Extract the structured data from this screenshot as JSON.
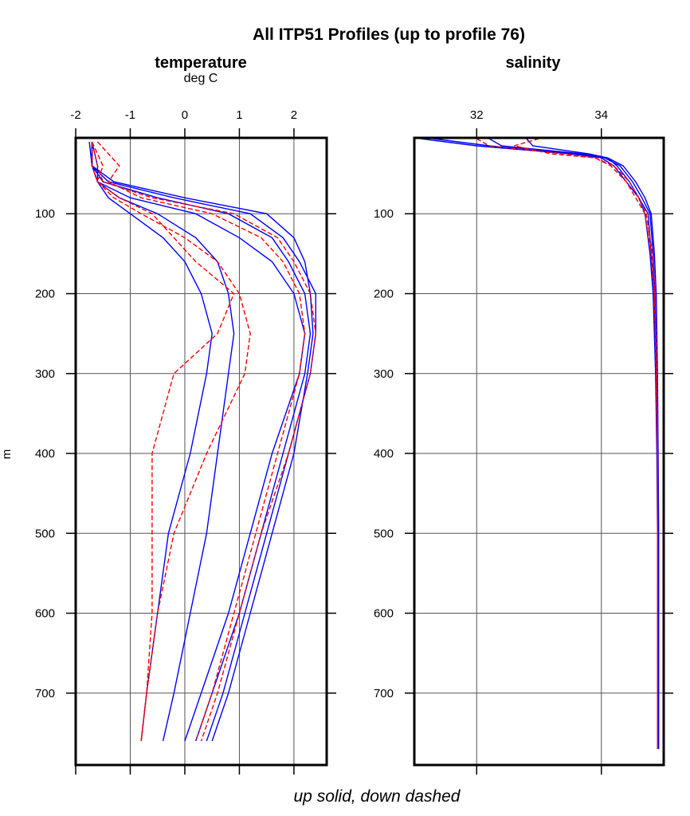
{
  "chart_data": [
    {
      "type": "line",
      "title": "All ITP51 Profiles (up to profile 76)",
      "panel_title": "temperature",
      "xlabel": "deg C",
      "ylabel": "m",
      "footnote": "up solid, down dashed",
      "xlim": [
        -2,
        2.6
      ],
      "ylim": [
        5,
        790
      ],
      "y_inverted": true,
      "x_ticks": [
        "-2",
        "-1",
        "0",
        "1",
        "2"
      ],
      "x_tick_values": [
        -2,
        -1,
        0,
        1,
        2
      ],
      "y_ticks": [
        "100",
        "200",
        "300",
        "400",
        "500",
        "600",
        "700"
      ],
      "y_tick_values": [
        100,
        200,
        300,
        400,
        500,
        600,
        700
      ],
      "grid": true,
      "depth": [
        10,
        40,
        60,
        80,
        100,
        130,
        160,
        200,
        250,
        300,
        400,
        500,
        600,
        700,
        760
      ],
      "series": [
        {
          "name": "up",
          "style": "solid",
          "color": "#0000ff",
          "values": [
            -1.7,
            -1.7,
            -1.5,
            -0.5,
            0.8,
            1.6,
            1.9,
            2.2,
            2.3,
            2.2,
            1.8,
            1.4,
            1.0,
            0.5,
            0.2
          ]
        },
        {
          "name": "up",
          "style": "solid",
          "color": "#0000ff",
          "values": [
            -1.75,
            -1.7,
            -1.4,
            -0.2,
            1.2,
            1.8,
            2.1,
            2.4,
            2.4,
            2.3,
            1.9,
            1.5,
            1.1,
            0.7,
            0.4
          ]
        },
        {
          "name": "up",
          "style": "solid",
          "color": "#0000ff",
          "values": [
            -1.7,
            -1.6,
            -1.6,
            -1.0,
            0.2,
            1.0,
            1.6,
            2.0,
            2.2,
            2.1,
            1.6,
            1.2,
            0.8,
            0.3,
            0.0
          ]
        },
        {
          "name": "up",
          "style": "solid",
          "color": "#0000ff",
          "values": [
            -1.7,
            -1.7,
            -1.6,
            -1.2,
            -0.5,
            0.2,
            0.6,
            0.8,
            0.9,
            0.8,
            0.6,
            0.4,
            0.1,
            -0.2,
            -0.4
          ]
        },
        {
          "name": "up",
          "style": "solid",
          "color": "#0000ff",
          "values": [
            -1.7,
            -1.7,
            -1.6,
            -1.4,
            -1.0,
            -0.4,
            0.0,
            0.3,
            0.5,
            0.4,
            0.1,
            -0.3,
            -0.5,
            -0.7,
            -0.8
          ]
        },
        {
          "name": "up",
          "style": "solid",
          "color": "#0000ff",
          "values": [
            -1.7,
            -1.7,
            -1.3,
            0.0,
            1.5,
            2.0,
            2.2,
            2.3,
            2.35,
            2.25,
            2.0,
            1.6,
            1.2,
            0.8,
            0.5
          ]
        },
        {
          "name": "down",
          "style": "dashed",
          "color": "#ff0000",
          "values": [
            -1.6,
            -1.2,
            -1.4,
            -0.8,
            0.5,
            1.4,
            1.8,
            2.1,
            2.2,
            2.1,
            1.7,
            1.3,
            0.9,
            0.5,
            0.2
          ]
        },
        {
          "name": "down",
          "style": "dashed",
          "color": "#ff0000",
          "values": [
            -1.7,
            -1.5,
            -1.6,
            -1.3,
            -0.8,
            0.0,
            0.6,
            1.0,
            1.2,
            1.1,
            0.4,
            -0.2,
            -0.5,
            -0.7,
            -0.8
          ]
        },
        {
          "name": "down",
          "style": "dashed",
          "color": "#ff0000",
          "values": [
            -1.7,
            -1.6,
            -1.5,
            -0.6,
            0.9,
            1.7,
            2.0,
            2.3,
            2.4,
            2.3,
            1.9,
            1.4,
            1.0,
            0.6,
            0.3
          ]
        },
        {
          "name": "down",
          "style": "dashed",
          "color": "#ff0000",
          "values": [
            -1.7,
            -1.7,
            -1.6,
            -1.2,
            -0.6,
            -0.2,
            0.2,
            0.9,
            0.6,
            -0.2,
            -0.6,
            -0.6,
            -0.6,
            -0.7,
            -0.8
          ]
        }
      ]
    },
    {
      "type": "line",
      "panel_title": "salinity",
      "xlim": [
        31,
        35
      ],
      "ylim": [
        5,
        790
      ],
      "y_inverted": true,
      "x_ticks": [
        "32",
        "34"
      ],
      "x_tick_values": [
        32,
        34
      ],
      "y_ticks": [
        "100",
        "200",
        "300",
        "400",
        "500",
        "600",
        "700"
      ],
      "y_tick_values": [
        100,
        200,
        300,
        400,
        500,
        600,
        700
      ],
      "grid": true,
      "depth": [
        6,
        15,
        25,
        30,
        40,
        60,
        80,
        100,
        150,
        200,
        300,
        400,
        500,
        600,
        700,
        770
      ],
      "series": [
        {
          "name": "up",
          "style": "solid",
          "color": "#0000ff",
          "values": [
            31.1,
            32.0,
            33.5,
            34.0,
            34.2,
            34.4,
            34.6,
            34.75,
            34.8,
            34.85,
            34.88,
            34.9,
            34.9,
            34.9,
            34.9,
            34.9
          ]
        },
        {
          "name": "up",
          "style": "solid",
          "color": "#0000ff",
          "values": [
            31.3,
            32.2,
            33.6,
            34.05,
            34.3,
            34.5,
            34.65,
            34.78,
            34.83,
            34.86,
            34.89,
            34.9,
            34.91,
            34.91,
            34.9,
            34.9
          ]
        },
        {
          "name": "up",
          "style": "solid",
          "color": "#0000ff",
          "values": [
            32.2,
            32.4,
            33.7,
            34.1,
            34.35,
            34.55,
            34.7,
            34.8,
            34.85,
            34.88,
            34.9,
            34.91,
            34.92,
            34.92,
            34.92,
            34.92
          ]
        },
        {
          "name": "up",
          "style": "solid",
          "color": "#0000ff",
          "values": [
            32.8,
            32.9,
            33.8,
            34.1,
            34.25,
            34.45,
            34.6,
            34.7,
            34.78,
            34.83,
            34.87,
            34.89,
            34.9,
            34.9,
            34.9,
            34.9
          ]
        },
        {
          "name": "down",
          "style": "dashed",
          "color": "#ff0000",
          "values": [
            32.0,
            32.2,
            33.4,
            33.9,
            34.15,
            34.4,
            34.55,
            34.7,
            34.8,
            34.85,
            34.88,
            34.9,
            34.9,
            34.9,
            34.9,
            34.9
          ]
        },
        {
          "name": "down",
          "style": "dashed",
          "color": "#ff0000",
          "values": [
            33.0,
            32.6,
            33.2,
            33.9,
            34.2,
            34.45,
            34.6,
            34.72,
            34.82,
            34.86,
            34.89,
            34.9,
            34.9,
            34.9,
            34.9,
            34.9
          ]
        }
      ]
    }
  ]
}
